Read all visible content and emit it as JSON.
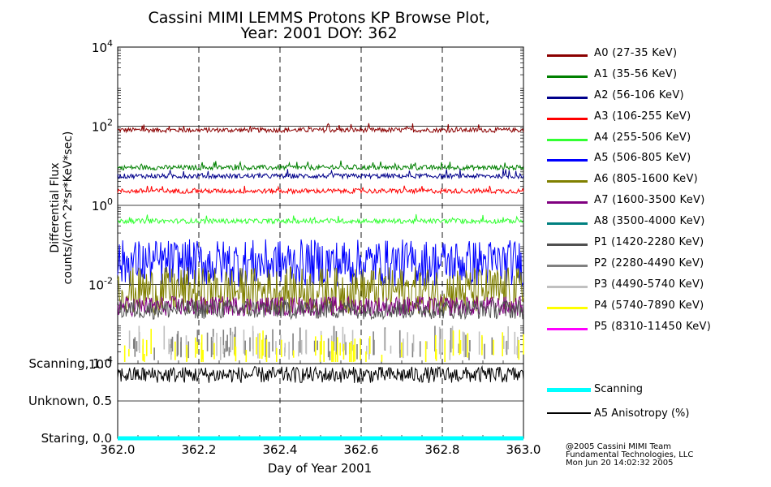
{
  "chart_data": [
    {
      "type": "line",
      "title": "Cassini MIMI LEMMS Protons KP Browse Plot,",
      "subtitle": "Year: 2001 DOY: 362",
      "ylabel": "Differential Flux",
      "ylabel2": "counts/(cm^2*sr*KeV*sec)",
      "yscale": "log",
      "ylim": [
        0.0001,
        10000
      ],
      "yticks": [
        {
          "base": "10",
          "exp": "4"
        },
        {
          "base": "10",
          "exp": "2"
        },
        {
          "base": "10",
          "exp": "0"
        },
        {
          "base": "10",
          "exp": "-2"
        },
        {
          "base": "10",
          "exp": "-4"
        }
      ],
      "xlim": [
        362.0,
        363.0
      ],
      "grid": true,
      "legend_position": "right",
      "series": [
        {
          "name": "A0 (27-35 KeV)",
          "color": "#8b0000",
          "typical": 80
        },
        {
          "name": "A1 (35-56 KeV)",
          "color": "#008000",
          "typical": 9
        },
        {
          "name": "A2 (56-106 KeV)",
          "color": "#00008b",
          "typical": 5.5
        },
        {
          "name": "A3 (106-255 KeV)",
          "color": "#ff0000",
          "typical": 2.3
        },
        {
          "name": "A4 (255-506 KeV)",
          "color": "#32ff32",
          "typical": 0.4
        },
        {
          "name": "A5 (506-805 KeV)",
          "color": "#0000ff",
          "typical": 0.04
        },
        {
          "name": "A6 (805-1600 KeV)",
          "color": "#808000",
          "typical": 0.008
        },
        {
          "name": "A7 (1600-3500 KeV)",
          "color": "#800080",
          "typical": 0.003
        },
        {
          "name": "A8 (3500-4000 KeV)",
          "color": "#008080",
          "typical": null
        },
        {
          "name": "P1 (1420-2280 KeV)",
          "color": "#505050",
          "typical": 0.0025
        },
        {
          "name": "P2 (2280-4490 KeV)",
          "color": "#808080",
          "typical": 0.0002
        },
        {
          "name": "P3 (4490-5740 KeV)",
          "color": "#c0c0c0",
          "typical": 0.0002
        },
        {
          "name": "P4 (5740-7890 KeV)",
          "color": "#ffff00",
          "typical": 0.00015
        },
        {
          "name": "P5 (8310-11450 KeV)",
          "color": "#ff00ff",
          "typical": null
        }
      ]
    },
    {
      "type": "line",
      "xlabel": "Day of Year 2001",
      "xticks": [
        "362.0",
        "362.2",
        "362.4",
        "362.6",
        "362.8",
        "363.0"
      ],
      "xlim": [
        362.0,
        363.0
      ],
      "ylim": [
        0.0,
        1.0
      ],
      "ytick_labels": [
        "Scanning, 1.0",
        "Unknown, 0.5",
        "Staring, 0.0"
      ],
      "series": [
        {
          "name": "Scanning",
          "color": "#00ffff",
          "value": 0.0
        },
        {
          "name": "A5 Anisotropy (%)",
          "color": "#000000",
          "typical": 0.85
        }
      ]
    }
  ],
  "credits": [
    "@2005 Cassini MIMI Team",
    "Fundamental Technologies, LLC",
    "Mon Jun 20 14:02:32 2005"
  ]
}
